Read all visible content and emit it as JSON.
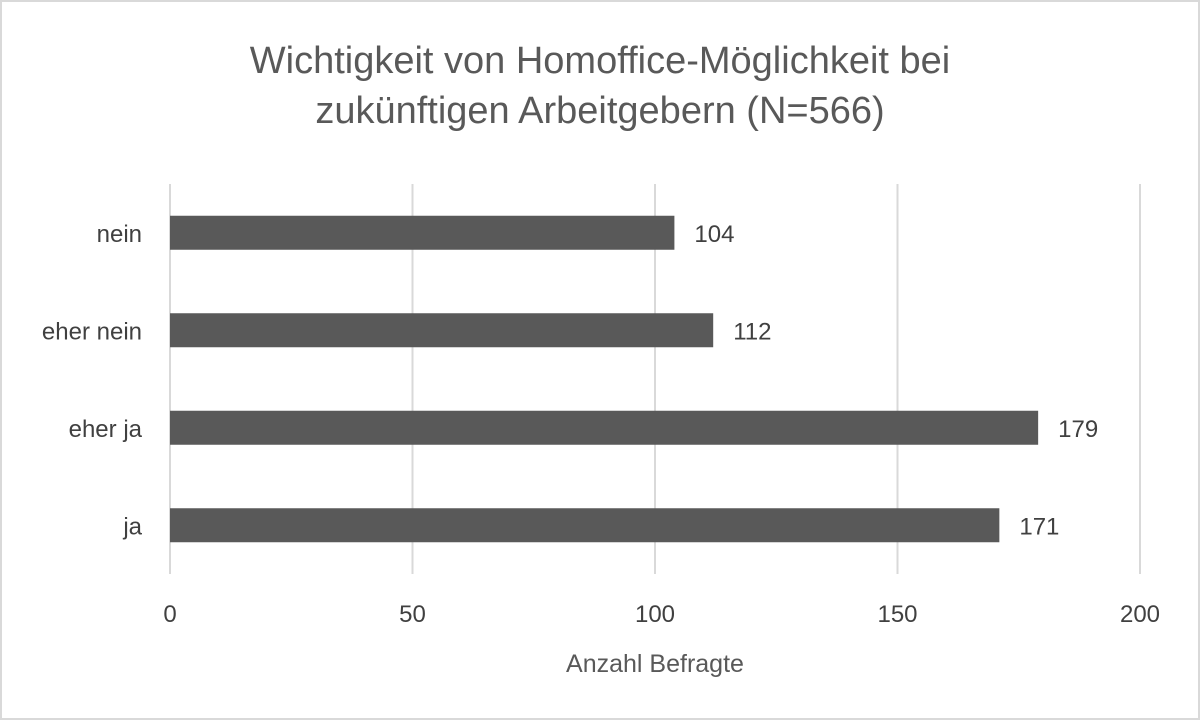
{
  "chart_data": {
    "type": "bar",
    "orientation": "horizontal",
    "title_lines": [
      "Wichtigkeit von Homoffice-Möglichkeit bei",
      "zukünftigen Arbeitgebern (N=566)"
    ],
    "categories": [
      "nein",
      "eher nein",
      "eher ja",
      "ja"
    ],
    "values": [
      104,
      112,
      179,
      171
    ],
    "data_labels": [
      "104",
      "112",
      "179",
      "171"
    ],
    "xlabel": "Anzahl Befragte",
    "ylabel": "",
    "xlim": [
      0,
      200
    ],
    "xticks": [
      0,
      50,
      100,
      150,
      200
    ],
    "xtick_labels": [
      "0",
      "50",
      "100",
      "150",
      "200"
    ],
    "grid": "vertical",
    "legend": "none",
    "colors": {
      "bar": "#595959",
      "grid": "#d9d9d9",
      "text": "#595959",
      "axis_text": "#404040"
    }
  }
}
